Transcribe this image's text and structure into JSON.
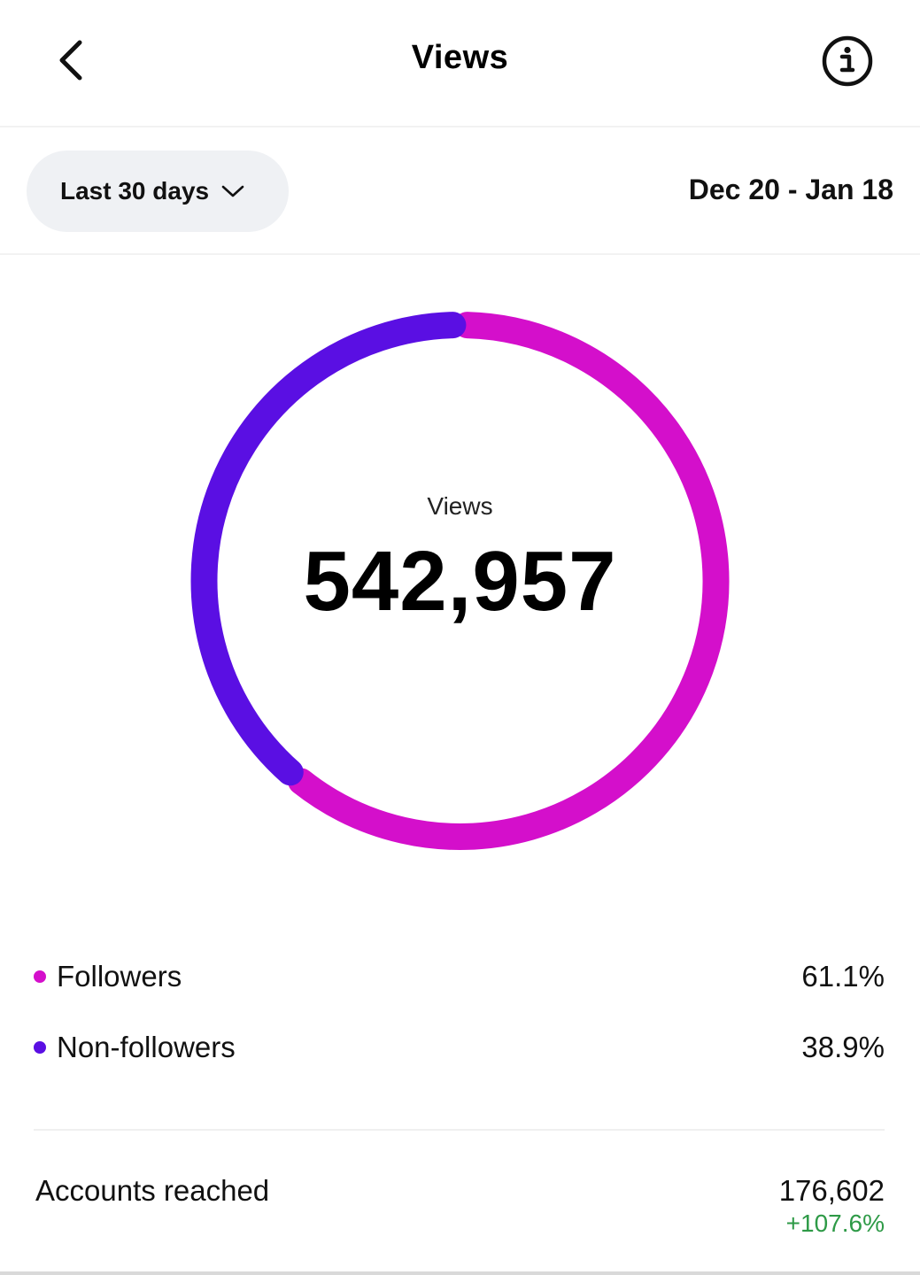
{
  "header": {
    "title": "Views",
    "back_icon": "chevron-left-icon",
    "info_icon": "info-circle-icon"
  },
  "filter": {
    "range_label": "Last 30 days",
    "range_icon": "chevron-down-icon",
    "date_range": "Dec 20 - Jan 18"
  },
  "chart_data": {
    "type": "pie",
    "title": "",
    "center_label": "Views",
    "center_value": "542,957",
    "series": [
      {
        "name": "Followers",
        "value": 61.1,
        "display": "61.1%",
        "color": "#d40fcb"
      },
      {
        "name": "Non-followers",
        "value": 38.9,
        "display": "38.9%",
        "color": "#5a0fe3"
      }
    ]
  },
  "legend": [
    {
      "label": "Followers",
      "value": "61.1%",
      "color": "#d40fcb"
    },
    {
      "label": "Non-followers",
      "value": "38.9%",
      "color": "#5a0fe3"
    }
  ],
  "reach": {
    "label": "Accounts reached",
    "value": "176,602",
    "change": "+107.6%",
    "change_color": "#2e9a47"
  }
}
